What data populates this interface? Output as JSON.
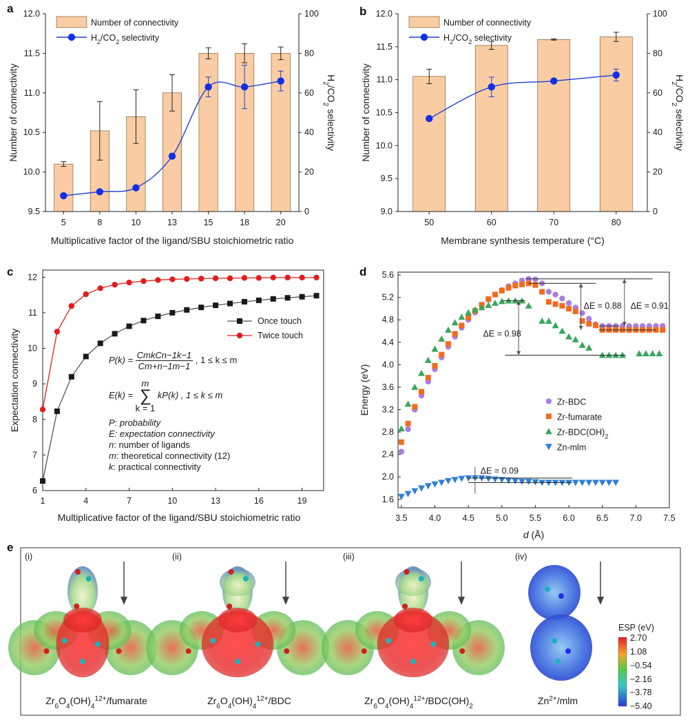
{
  "panels": {
    "a": "a",
    "b": "b",
    "c": "c",
    "d": "d",
    "e": "e"
  },
  "chart_data": [
    {
      "id": "a",
      "type": "bar",
      "categories": [
        "5",
        "8",
        "10",
        "13",
        "15",
        "18",
        "20"
      ],
      "series": [
        {
          "name": "Number of connectivity",
          "axis": "left",
          "values": [
            10.1,
            10.52,
            10.7,
            11.0,
            11.5,
            11.5,
            11.5
          ],
          "err": [
            0.03,
            0.37,
            0.34,
            0.23,
            0.07,
            0.12,
            0.08
          ]
        },
        {
          "name": "H2/CO2 selectivity",
          "axis": "right",
          "kind": "line",
          "values": [
            8,
            10,
            12,
            28,
            63,
            63,
            66
          ],
          "err": [
            0,
            0,
            0,
            0,
            5,
            11,
            5
          ]
        }
      ],
      "xlabel": "Multiplicative factor of the ligand/SBU stoichiometric ratio",
      "ylabel": "Number of connectivity",
      "ylabel2": "H2/CO2 selectivity",
      "ylim": [
        9.5,
        12.0
      ],
      "y2lim": [
        0,
        100
      ],
      "yticks": [
        "9.5",
        "10.0",
        "10.5",
        "11.0",
        "11.5",
        "12.0"
      ],
      "y2ticks": [
        "0",
        "20",
        "40",
        "60",
        "80",
        "100"
      ],
      "legend": [
        "Number of connectivity",
        "H2/CO2 selectivity"
      ]
    },
    {
      "id": "b",
      "type": "bar",
      "categories": [
        "50",
        "60",
        "70",
        "80"
      ],
      "series": [
        {
          "name": "Number of connectivity",
          "axis": "left",
          "values": [
            11.05,
            11.52,
            11.61,
            11.65
          ],
          "err": [
            0.11,
            0.06,
            0.01,
            0.07
          ]
        },
        {
          "name": "H2/CO2 selectivity",
          "axis": "right",
          "kind": "line",
          "values": [
            47,
            63,
            66,
            69
          ],
          "err": [
            0,
            5,
            0,
            3
          ]
        }
      ],
      "xlabel": "Membrane synthesis temperature (°C)",
      "ylabel": "Number of connectivity",
      "ylabel2": "H2/CO2 selectivity",
      "ylim": [
        9.0,
        12.0
      ],
      "y2lim": [
        0,
        100
      ],
      "yticks": [
        "9.0",
        "9.5",
        "10.0",
        "10.5",
        "11.0",
        "11.5",
        "12.0"
      ],
      "y2ticks": [
        "0",
        "20",
        "40",
        "60",
        "80",
        "100"
      ],
      "legend": [
        "Number of connectivity",
        "H2/CO2 selectivity"
      ]
    },
    {
      "id": "c",
      "type": "line",
      "x": [
        1,
        2,
        3,
        4,
        5,
        6,
        7,
        8,
        9,
        10,
        11,
        12,
        13,
        14,
        15,
        16,
        17,
        18,
        19,
        20
      ],
      "series": [
        {
          "name": "Once touch",
          "color": "#1a1a1a",
          "values": [
            6.27,
            8.23,
            9.2,
            9.77,
            10.14,
            10.41,
            10.62,
            10.78,
            10.9,
            11.0,
            11.08,
            11.15,
            11.21,
            11.26,
            11.31,
            11.35,
            11.39,
            11.42,
            11.45,
            11.48
          ]
        },
        {
          "name": "Twice touch",
          "color": "#e01e1e",
          "values": [
            8.28,
            10.47,
            11.19,
            11.52,
            11.69,
            11.79,
            11.85,
            11.89,
            11.92,
            11.94,
            11.95,
            11.96,
            11.97,
            11.97,
            11.98,
            11.98,
            11.99,
            11.99,
            11.99,
            11.99
          ]
        }
      ],
      "xlabel": "Multiplicative factor of the ligand/SBU stoichiometric ratio",
      "ylabel": "Expectation connectivity",
      "xlim": [
        1,
        20.5
      ],
      "ylim": [
        6,
        12.2
      ],
      "xticks": [
        "1",
        "4",
        "7",
        "10",
        "13",
        "16",
        "19"
      ],
      "yticks": [
        "6",
        "7",
        "8",
        "9",
        "10",
        "11",
        "12"
      ],
      "legend": [
        "Once touch",
        "Twice touch"
      ],
      "annotations": {
        "p_lhs": "P(k) =",
        "p_num": "CmkCn−1k−1",
        "p_den": "Cm+n−1m−1",
        "p_cond": ", 1 ≤ k ≤ m",
        "e_lhs": "E(k) =",
        "e_top": "m",
        "e_sigma": "∑",
        "e_bottom": "k = 1",
        "e_body": "kP(k) , 1 ≤ k ≤ m",
        "defs": [
          {
            "sym": "P",
            "text": ": probability",
            "italic": true
          },
          {
            "sym": "E",
            "text": ": expectation connectivity",
            "italic": true
          },
          {
            "sym": "n",
            "text": ": number of ligands",
            "italic": false
          },
          {
            "sym": "m",
            "text": ": theoretical connectivity (12)",
            "italic": false
          },
          {
            "sym": "k",
            "text": ": practical connectivity",
            "italic": false
          }
        ]
      }
    },
    {
      "id": "d",
      "type": "scatter",
      "xlabel": "d (Å)",
      "ylabel": "Energy (eV)",
      "xlim": [
        3.45,
        7.5
      ],
      "ylim": [
        1.45,
        5.65
      ],
      "xticks": [
        "3.5",
        "4.0",
        "4.5",
        "5.0",
        "5.5",
        "6.0",
        "6.5",
        "7.0",
        "7.5"
      ],
      "yticks": [
        "1.6",
        "2.0",
        "2.4",
        "2.8",
        "3.2",
        "3.6",
        "4.0",
        "4.4",
        "4.8",
        "5.2",
        "5.6"
      ],
      "series": [
        {
          "name": "Zr-BDC",
          "marker": "circle",
          "color": "#a97ee0",
          "x": [
            3.5,
            3.6,
            3.7,
            3.8,
            3.9,
            4.0,
            4.1,
            4.2,
            4.3,
            4.4,
            4.5,
            4.6,
            4.7,
            4.8,
            4.9,
            5.0,
            5.1,
            5.2,
            5.3,
            5.4,
            5.5,
            5.6,
            5.7,
            5.8,
            5.9,
            6.0,
            6.1,
            6.2,
            6.3,
            6.4,
            6.5,
            6.6,
            6.7,
            6.8,
            6.9,
            7.0,
            7.1,
            7.2,
            7.3,
            7.4
          ],
          "y": [
            2.45,
            2.85,
            3.2,
            3.45,
            3.7,
            3.92,
            4.13,
            4.32,
            4.5,
            4.66,
            4.8,
            4.93,
            5.05,
            5.16,
            5.25,
            5.33,
            5.4,
            5.45,
            5.5,
            5.53,
            5.52,
            5.45,
            5.3,
            5.25,
            5.18,
            5.1,
            5.02,
            4.92,
            4.82,
            4.72,
            4.69,
            4.69,
            4.69,
            4.69,
            4.69,
            4.69,
            4.69,
            4.69,
            4.69,
            4.69
          ]
        },
        {
          "name": "Zr-fumarate",
          "marker": "square",
          "color": "#f26b1d",
          "x": [
            3.5,
            3.6,
            3.7,
            3.8,
            3.9,
            4.0,
            4.1,
            4.2,
            4.3,
            4.4,
            4.5,
            4.6,
            4.7,
            4.8,
            4.9,
            5.0,
            5.1,
            5.2,
            5.3,
            5.4,
            5.5,
            5.6,
            5.7,
            5.8,
            5.9,
            6.0,
            6.1,
            6.2,
            6.3,
            6.4,
            6.5,
            6.6,
            6.7,
            6.8,
            6.9,
            7.0,
            7.1,
            7.2,
            7.3,
            7.4
          ],
          "y": [
            2.62,
            2.95,
            3.25,
            3.52,
            3.77,
            3.98,
            4.18,
            4.37,
            4.55,
            4.7,
            4.84,
            4.96,
            5.07,
            5.17,
            5.25,
            5.32,
            5.37,
            5.41,
            5.43,
            5.45,
            5.42,
            5.3,
            5.12,
            5.08,
            5.05,
            5.0,
            4.95,
            4.78,
            4.73,
            4.7,
            4.62,
            4.62,
            4.62,
            4.62,
            4.62,
            4.62,
            4.62,
            4.62,
            4.62,
            4.62
          ]
        },
        {
          "name": "Zr-BDC(OH)2",
          "marker": "triangle-up",
          "color": "#3aa65c",
          "x": [
            3.5,
            3.6,
            3.7,
            3.8,
            3.9,
            4.0,
            4.1,
            4.2,
            4.3,
            4.4,
            4.5,
            4.6,
            4.7,
            4.8,
            4.9,
            5.0,
            5.1,
            5.2,
            5.3,
            5.4,
            5.6,
            5.7,
            5.8,
            5.9,
            6.0,
            6.1,
            6.2,
            6.3,
            6.5,
            6.6,
            6.7,
            6.8,
            7.05,
            7.15,
            7.25,
            7.35
          ],
          "y": [
            2.86,
            3.3,
            3.6,
            3.85,
            4.08,
            4.28,
            4.46,
            4.62,
            4.75,
            4.85,
            4.93,
            4.98,
            5.02,
            5.06,
            5.1,
            5.13,
            5.14,
            5.14,
            5.14,
            5.05,
            4.78,
            4.78,
            4.7,
            4.6,
            4.5,
            4.45,
            4.35,
            4.3,
            4.17,
            4.17,
            4.17,
            4.17,
            4.2,
            4.2,
            4.2,
            4.2
          ]
        },
        {
          "name": "Zn-mlm",
          "marker": "triangle-down",
          "color": "#2f7fd6",
          "x": [
            3.5,
            3.6,
            3.7,
            3.8,
            3.9,
            4.0,
            4.1,
            4.2,
            4.3,
            4.4,
            4.5,
            4.6,
            4.7,
            4.8,
            4.9,
            5.0,
            5.1,
            5.2,
            5.3,
            5.4,
            5.5,
            5.6,
            5.7,
            5.8,
            5.9,
            6.0,
            6.1,
            6.2,
            6.3,
            6.4,
            6.5,
            6.6,
            6.7
          ],
          "y": [
            1.65,
            1.7,
            1.75,
            1.8,
            1.84,
            1.87,
            1.9,
            1.93,
            1.95,
            1.97,
            1.98,
            1.98,
            1.98,
            1.97,
            1.96,
            1.95,
            1.94,
            1.93,
            1.92,
            1.92,
            1.91,
            1.9,
            1.9,
            1.9,
            1.9,
            1.9,
            1.9,
            1.9,
            1.9,
            1.9,
            1.9,
            1.9,
            1.9
          ]
        }
      ],
      "annotations": [
        "ΔE = 0.88",
        "ΔE = 0.91",
        "ΔE = 0.98",
        "ΔE = 0.09"
      ],
      "legend": [
        "Zr-BDC",
        "Zr-fumarate",
        "Zr-BDC(OH)2",
        "Zn-mlm"
      ]
    }
  ],
  "panel_e": {
    "items": [
      {
        "roman": "(i)",
        "caption": "Zr6O4(OH)412+/fumarate"
      },
      {
        "roman": "(ii)",
        "caption": "Zr6O4(OH)412+/BDC"
      },
      {
        "roman": "(iii)",
        "caption": "Zr6O4(OH)412+/BDC(OH)2"
      },
      {
        "roman": "(iv)",
        "caption": "Zn2+/mlm"
      }
    ],
    "colorbar": {
      "title": "ESP (eV)",
      "ticks": [
        "2.70",
        "1.08",
        "−0.54",
        "−2.16",
        "−3.78",
        "−5.40"
      ]
    }
  },
  "colors": {
    "bar_fill": "#f9cca3",
    "line_blue": "#1f3fd6",
    "dot_blue": "#1030e8"
  }
}
